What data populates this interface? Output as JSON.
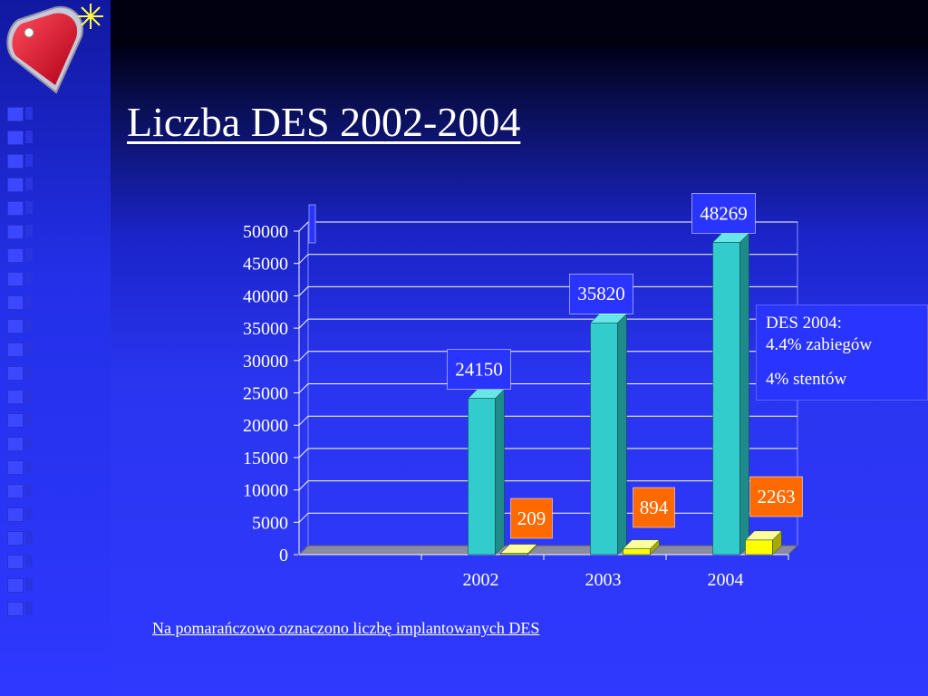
{
  "title": "Liczba DES 2002-2004",
  "note": "Na pomarańczowo oznaczono liczbę implantowanych DES",
  "infobox": {
    "line1": "DES 2004:",
    "line2": "4.4% zabiegów",
    "line3": "4% stentów"
  },
  "colors": {
    "series_total": "#33cccc",
    "series_des": "#ffff00",
    "label_total_bg": "#2a34ff",
    "label_des_bg": "#ff6a00",
    "logo_heart": "#e0203a"
  },
  "logo": {
    "icon": "heart-tag-icon"
  },
  "chart_data": {
    "type": "bar",
    "categories": [
      "2002",
      "2003",
      "2004"
    ],
    "series": [
      {
        "values": [
          24150,
          35820,
          48269
        ]
      },
      {
        "values": [
          209,
          894,
          2263
        ]
      }
    ],
    "y_ticks": [
      "0",
      "5000",
      "10000",
      "15000",
      "20000",
      "25000",
      "30000",
      "35000",
      "40000",
      "45000",
      "50000"
    ],
    "ylim": [
      0,
      50000
    ],
    "grid": true,
    "legend": "none"
  }
}
